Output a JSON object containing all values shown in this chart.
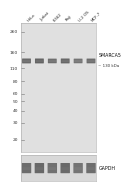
{
  "fig_bg": "#ffffff",
  "main_panel_bg": "#e0e0e0",
  "gapdh_panel_bg": "#d8d8d8",
  "lane_labels": [
    "HeLa",
    "Jurkat",
    "K-562",
    "Raji",
    "U-2 OS",
    "MCF-7"
  ],
  "n_lanes": 6,
  "mw_markers": [
    260,
    160,
    110,
    80,
    60,
    50,
    40,
    30,
    20
  ],
  "mw_min": 15,
  "mw_max": 320,
  "main_band_mw": 130,
  "smarca5_label": "SMARCA5",
  "smarca5_mw_label": "~ 130 kDa",
  "gapdh_label": "GAPDH",
  "band_color": "#606060",
  "band_highlight": "#909090",
  "gapdh_band_color": "#585858",
  "outer_bg": "#c8c8c8"
}
